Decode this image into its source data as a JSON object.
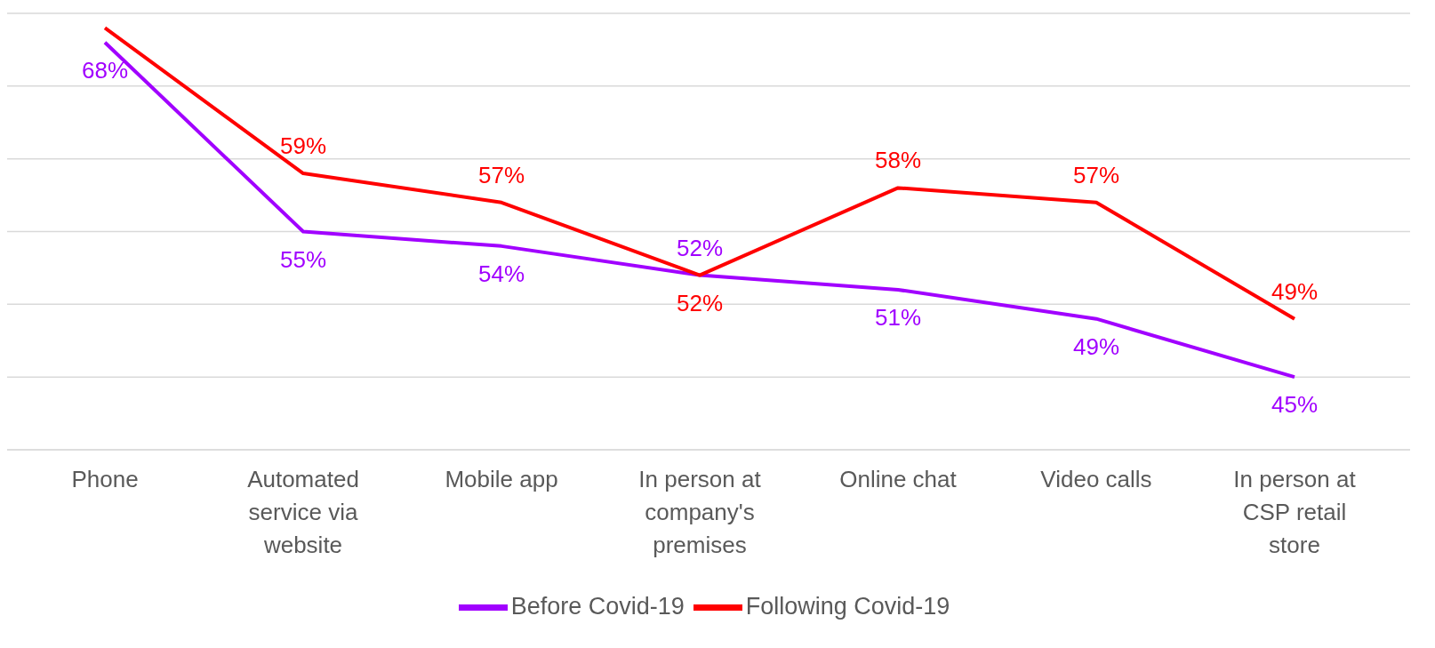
{
  "chart_data": {
    "type": "line",
    "categories": [
      "Phone",
      "Automated service via website",
      "Mobile app",
      "In person at company's premises",
      "Online chat",
      "Video calls",
      "In person at CSP retail store"
    ],
    "series": [
      {
        "name": "Before Covid-19",
        "color": "#a100ff",
        "values": [
          68,
          55,
          54,
          52,
          51,
          49,
          45
        ],
        "value_labels": [
          "68%",
          "55%",
          "54%",
          "52%",
          "51%",
          "49%",
          "45%"
        ]
      },
      {
        "name": "Following Covid-19",
        "color": "#ff0000",
        "values": [
          69,
          59,
          57,
          52,
          58,
          57,
          49
        ],
        "value_labels": [
          null,
          "59%",
          "57%",
          "52%",
          "58%",
          "57%",
          "49%"
        ]
      }
    ],
    "ylim": [
      40,
      70
    ],
    "yticks": [
      {
        "value": 40,
        "label": null
      },
      {
        "value": 45,
        "label": null
      },
      {
        "value": 50,
        "label": null
      },
      {
        "value": 55,
        "label": null
      },
      {
        "value": 60,
        "label": null
      },
      {
        "value": 65,
        "label": null
      },
      {
        "value": 70,
        "label": null
      }
    ],
    "grid": "y",
    "legend": "bottom",
    "marker": "none",
    "line_style": "solid",
    "tick_labels": "x"
  }
}
